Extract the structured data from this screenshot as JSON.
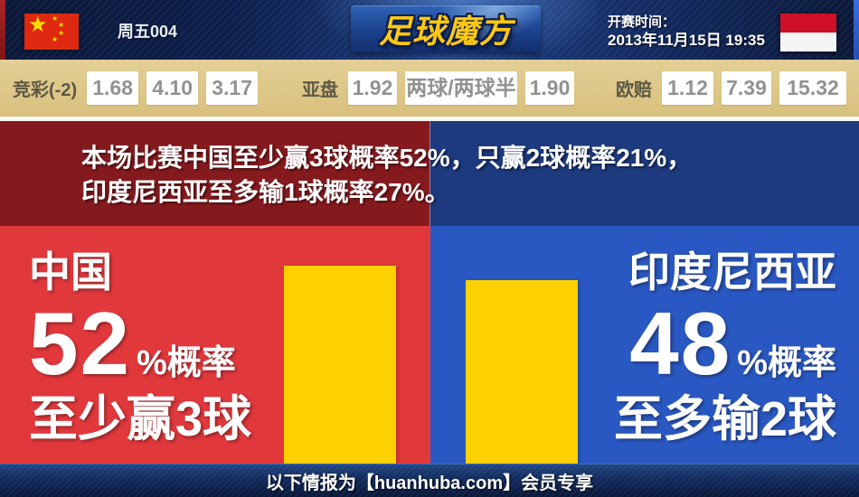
{
  "header": {
    "match_label": "周五004",
    "logo": "足球魔方",
    "kickoff_label": "开赛时间：",
    "kickoff_datetime": "2013年11月15日 19:35",
    "home_flag": "china",
    "away_flag": "indonesia"
  },
  "odds": {
    "jingcai": {
      "label": "竞彩(-2)",
      "values": [
        "1.68",
        "4.10",
        "3.17"
      ]
    },
    "yapan": {
      "label": "亚盘",
      "values": [
        "1.92",
        "两球/两球半",
        "1.90"
      ]
    },
    "oupei": {
      "label": "欧赔",
      "values": [
        "1.12",
        "7.39",
        "15.32"
      ]
    }
  },
  "summary": {
    "line1": "本场比赛中国至少赢3球概率52%，只赢2球概率21%，",
    "line2": "印度尼西亚至多输1球概率27%。"
  },
  "home": {
    "name": "中国",
    "percent": "52",
    "percent_unit": "%概率",
    "outcome": "至少赢3球"
  },
  "away": {
    "name": "印度尼西亚",
    "percent": "48",
    "percent_unit": "%概率",
    "outcome": "至多输2球"
  },
  "footer": {
    "text": "以下情报为【huanhuba.com】会员专享"
  },
  "colors": {
    "home_red": "#e1383c",
    "home_dark_red": "#851a1e",
    "away_blue": "#2a58c2",
    "away_dark_blue": "#1e3a7f",
    "bar_yellow": "#fdd000",
    "odds_bar_tan": "#dcc487",
    "header_navy": "#0d1f4c",
    "logo_gold": "#ffc812"
  },
  "chart_data": {
    "type": "bar",
    "categories": [
      "中国",
      "印度尼西亚"
    ],
    "values": [
      52,
      48
    ],
    "unit": "%",
    "bar_labels": [
      "至少赢3球",
      "至多输2球"
    ],
    "legend_position": "none",
    "grid": false
  }
}
